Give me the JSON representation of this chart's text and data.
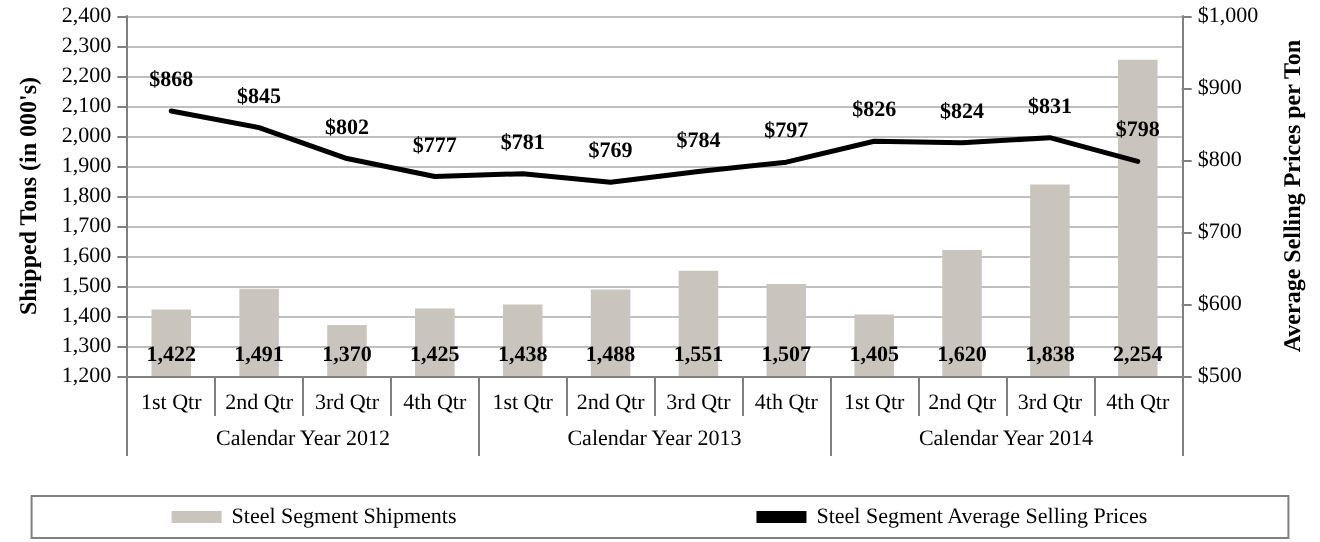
{
  "chart_data": {
    "type": "bar",
    "ylabel": "Shipped Tons (in 000's)",
    "y2label": "Average Selling Prices per Ton",
    "categories": [
      "1st Qtr",
      "2nd Qtr",
      "3rd Qtr",
      "4th Qtr",
      "1st Qtr",
      "2nd Qtr",
      "3rd Qtr",
      "4th Qtr",
      "1st Qtr",
      "2nd Qtr",
      "3rd Qtr",
      "4th Qtr"
    ],
    "annotations": [
      "Calendar Year 2012",
      "Calendar Year 2013",
      "Calendar Year 2014"
    ],
    "series": [
      {
        "name": "Steel Segment Shipments",
        "color": "#c9c5bd",
        "values": [
          1422,
          1491,
          1370,
          1425,
          1438,
          1488,
          1551,
          1507,
          1405,
          1620,
          1838,
          2254
        ],
        "value_labels": [
          "1,422",
          "1,491",
          "1,370",
          "1,425",
          "1,438",
          "1,488",
          "1,551",
          "1,507",
          "1,405",
          "1,620",
          "1,838",
          "2,254"
        ]
      },
      {
        "name": "Steel Segment Average Selling Prices",
        "type": "line",
        "axis": "y2",
        "color": "#000000",
        "values": [
          868,
          845,
          802,
          777,
          781,
          769,
          784,
          797,
          826,
          824,
          831,
          798
        ],
        "value_labels": [
          "$868",
          "$845",
          "$802",
          "$777",
          "$781",
          "$769",
          "$784",
          "$797",
          "$826",
          "$824",
          "$831",
          "$798"
        ]
      }
    ],
    "ylim": [
      1200,
      2400
    ],
    "yticks": [
      {
        "value": 1200,
        "label": "1,200"
      },
      {
        "value": 1300,
        "label": "1,300"
      },
      {
        "value": 1400,
        "label": "1,400"
      },
      {
        "value": 1500,
        "label": "1,500"
      },
      {
        "value": 1600,
        "label": "1,600"
      },
      {
        "value": 1700,
        "label": "1,700"
      },
      {
        "value": 1800,
        "label": "1,800"
      },
      {
        "value": 1900,
        "label": "1,900"
      },
      {
        "value": 2000,
        "label": "2,000"
      },
      {
        "value": 2100,
        "label": "2,100"
      },
      {
        "value": 2200,
        "label": "2,200"
      },
      {
        "value": 2300,
        "label": "2,300"
      },
      {
        "value": 2400,
        "label": "2,400"
      }
    ],
    "y2lim": [
      500,
      1000
    ],
    "y2ticks": [
      {
        "value": 500,
        "label": "$500"
      },
      {
        "value": 600,
        "label": "$600"
      },
      {
        "value": 700,
        "label": "$700"
      },
      {
        "value": 800,
        "label": "$800"
      },
      {
        "value": 900,
        "label": "$900"
      },
      {
        "value": 1000,
        "label": "$1,000"
      }
    ],
    "grid": "y",
    "legend": "bottom",
    "marker": "none",
    "line_style": "solid"
  }
}
